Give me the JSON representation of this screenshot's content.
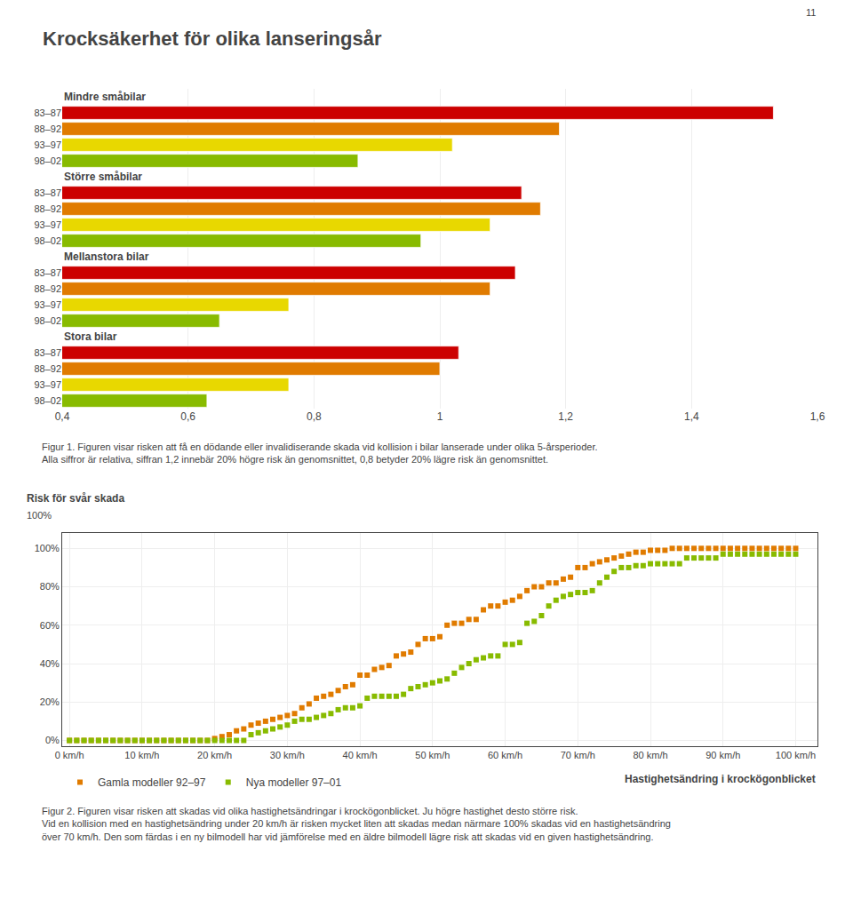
{
  "title": "Krocksäkerhet för olika lanseringsår",
  "annotations": [
    "11"
  ],
  "chart_data": [
    {
      "type": "bar",
      "orientation": "horizontal",
      "groups": [
        {
          "name": "Mindre småbilar",
          "categories": [
            "83–87",
            "88–92",
            "93–97",
            "98–02"
          ],
          "values": [
            1.53,
            1.19,
            1.02,
            0.87
          ],
          "colors": [
            "#cc0000",
            "#e07b00",
            "#e8d800",
            "#88bb00"
          ]
        },
        {
          "name": "Större småbilar",
          "categories": [
            "83–87",
            "88–92",
            "93–97",
            "98–02"
          ],
          "values": [
            1.13,
            1.16,
            1.08,
            0.97
          ],
          "colors": [
            "#cc0000",
            "#e07b00",
            "#e8d800",
            "#88bb00"
          ]
        },
        {
          "name": "Mellanstora bilar",
          "categories": [
            "83–87",
            "88–92",
            "93–97",
            "98–02"
          ],
          "values": [
            1.12,
            1.08,
            0.76,
            0.65
          ],
          "colors": [
            "#cc0000",
            "#e07b00",
            "#e8d800",
            "#88bb00"
          ]
        },
        {
          "name": "Stora bilar",
          "categories": [
            "83–87",
            "88–92",
            "93–97",
            "98–02"
          ],
          "values": [
            1.03,
            1.0,
            0.76,
            0.63
          ],
          "colors": [
            "#cc0000",
            "#e07b00",
            "#e8d800",
            "#88bb00"
          ]
        }
      ],
      "xlim": [
        0.4,
        1.6
      ],
      "xticks": [
        {
          "value": 0.4,
          "label": "0,4"
        },
        {
          "value": 0.6,
          "label": "0,6"
        },
        {
          "value": 0.8,
          "label": "0,8"
        },
        1,
        {
          "value": 1.2,
          "label": "1,2"
        },
        {
          "value": 1.4,
          "label": "1,4"
        },
        {
          "value": 1.6,
          "label": "1,6"
        }
      ],
      "grid": true,
      "caption": "Figur 1. Figuren visar risken att få en dödande eller invalidiserande skada vid kollision i bilar lanserade under olika 5-årsperioder.\nAlla siffror är relativa, siffran 1,2 innebär 20% högre risk än genomsnittet, 0,8 betyder 20% lägre risk än genomsnittet."
    },
    {
      "type": "scatter",
      "title": "Risk för svår skada",
      "annotations": [
        "100%"
      ],
      "xlabel": "Hastighetsändring i krockögonblicket",
      "x": [
        0,
        1,
        2,
        3,
        4,
        5,
        6,
        7,
        8,
        9,
        10,
        11,
        12,
        13,
        14,
        15,
        16,
        17,
        18,
        19,
        20,
        21,
        22,
        23,
        24,
        25,
        26,
        27,
        28,
        29,
        30,
        31,
        32,
        33,
        34,
        35,
        36,
        37,
        38,
        39,
        40,
        41,
        42,
        43,
        44,
        45,
        46,
        47,
        48,
        49,
        50,
        51,
        52,
        53,
        54,
        55,
        56,
        57,
        58,
        59,
        60,
        61,
        62,
        63,
        64,
        65,
        66,
        67,
        68,
        69,
        70,
        71,
        72,
        73,
        74,
        75,
        76,
        77,
        78,
        79,
        80,
        81,
        82,
        83,
        84,
        85,
        86,
        87,
        88,
        89,
        90,
        91,
        92,
        93,
        94,
        95,
        96,
        97,
        98,
        99,
        100
      ],
      "series": [
        {
          "name": "Gamla modeller 92–97",
          "color": "#e07b00",
          "marker": "square",
          "values": [
            0,
            0,
            0,
            0,
            0,
            0,
            0,
            0,
            0,
            0,
            0,
            0,
            0,
            0,
            0,
            0,
            0,
            0,
            0,
            0,
            1,
            2,
            3,
            5,
            6,
            8,
            9,
            10,
            11,
            12,
            13,
            14,
            17,
            19,
            22,
            23,
            24,
            26,
            28,
            29,
            34,
            34,
            37,
            38,
            39,
            44,
            45,
            46,
            50,
            53,
            53,
            54,
            60,
            61,
            61,
            63,
            63,
            68,
            70,
            70,
            72,
            73,
            75,
            78,
            80,
            80,
            82,
            82,
            84,
            85,
            90,
            90,
            92,
            93,
            94,
            95,
            96,
            97,
            98,
            98,
            99,
            99,
            99,
            100,
            100,
            100,
            100,
            100,
            100,
            100,
            100,
            100,
            100,
            100,
            100,
            100,
            100,
            100,
            100,
            100,
            100
          ]
        },
        {
          "name": "Nya modeller 97–01",
          "color": "#88bb00",
          "marker": "square",
          "values": [
            0,
            0,
            0,
            0,
            0,
            0,
            0,
            0,
            0,
            0,
            0,
            0,
            0,
            0,
            0,
            0,
            0,
            0,
            0,
            0,
            0,
            0,
            0,
            0,
            0,
            3,
            4,
            5,
            6,
            7,
            8,
            10,
            11,
            11,
            12,
            13,
            14,
            16,
            17,
            17,
            18,
            22,
            23,
            23,
            23,
            23,
            24,
            27,
            28,
            29,
            30,
            31,
            32,
            35,
            38,
            40,
            42,
            43,
            44,
            44,
            50,
            50,
            51,
            61,
            62,
            65,
            70,
            73,
            75,
            76,
            77,
            77,
            78,
            82,
            85,
            88,
            90,
            90,
            91,
            91,
            92,
            92,
            92,
            92,
            92,
            95,
            95,
            95,
            95,
            95,
            97,
            97,
            97,
            97,
            97,
            97,
            97,
            97,
            97,
            97,
            97
          ]
        }
      ],
      "xlim": [
        -1,
        103
      ],
      "ylim": [
        -3,
        108
      ],
      "xticks": [
        {
          "value": 0,
          "label": "0 km/h"
        },
        {
          "value": 10,
          "label": "10 km/h"
        },
        {
          "value": 20,
          "label": "20 km/h"
        },
        {
          "value": 30,
          "label": "30 km/h"
        },
        {
          "value": 40,
          "label": "40 km/h"
        },
        {
          "value": 50,
          "label": "50 km/h"
        },
        {
          "value": 60,
          "label": "60 km/h"
        },
        {
          "value": 70,
          "label": "70 km/h"
        },
        {
          "value": 80,
          "label": "80 km/h"
        },
        {
          "value": 90,
          "label": "90 km/h"
        },
        {
          "value": 100,
          "label": "100 km/h"
        }
      ],
      "yticks": [
        {
          "value": 0,
          "label": "0%"
        },
        {
          "value": 20,
          "label": "20%"
        },
        {
          "value": 40,
          "label": "40%"
        },
        {
          "value": 60,
          "label": "60%"
        },
        {
          "value": 80,
          "label": "80%"
        },
        {
          "value": 100,
          "label": "100%"
        }
      ],
      "grid": true,
      "legend": "bottom",
      "caption": "Figur 2. Figuren visar risken att skadas vid olika hastighetsändringar i krockögonblicket. Ju högre hastighet desto större risk.\nVid en kollision med en hastighetsändring under 20 km/h är risken mycket liten att skadas medan närmare 100% skadas vid en hastighetsändring\növer 70 km/h. Den som färdas i en ny bilmodell har vid jämförelse med en äldre bilmodell lägre risk att skadas vid en given hastighetsändring."
    }
  ]
}
